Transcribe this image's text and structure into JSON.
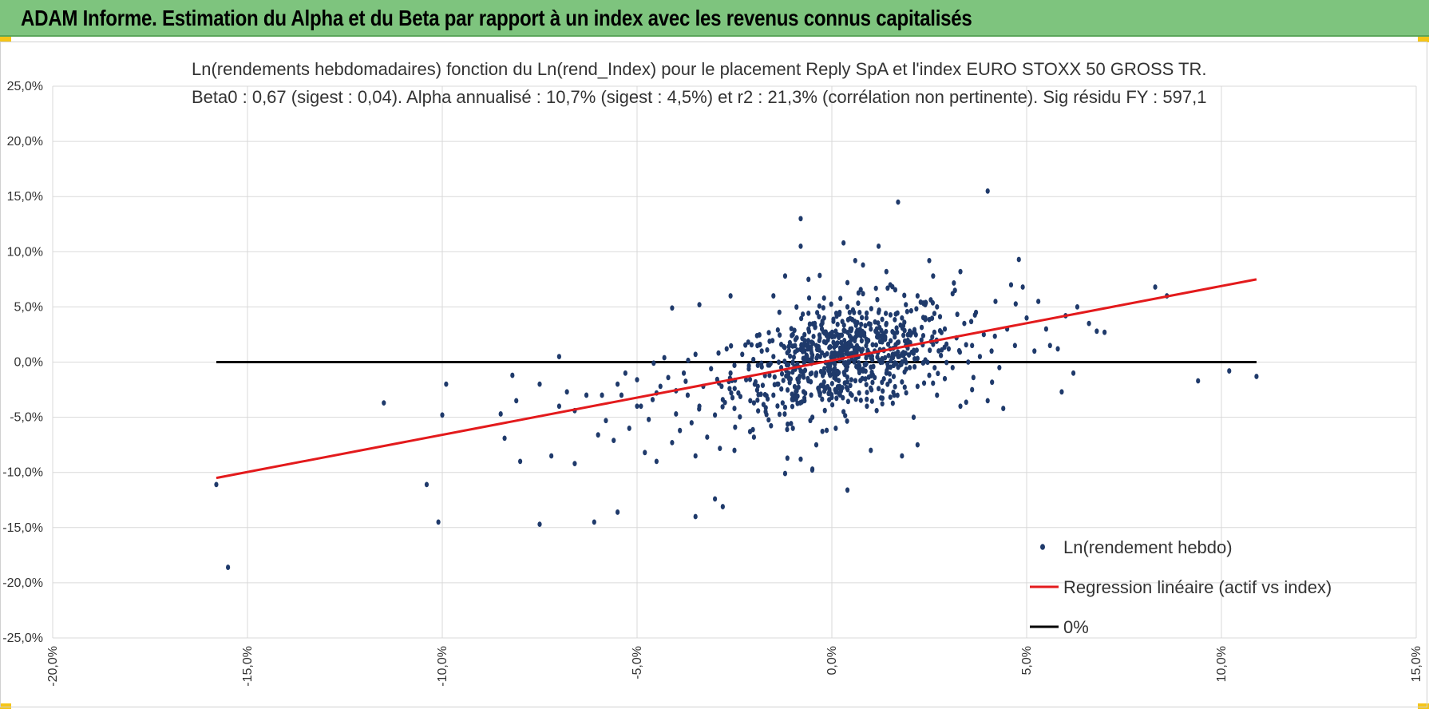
{
  "header": {
    "title": "ADAM Informe. Estimation du Alpha et du Beta par rapport à un index avec les revenus connus capitalisés"
  },
  "colors": {
    "banner": "#7ec47e",
    "points": "#1f3a6b",
    "regression": "#e31a1c",
    "zero_line": "#000000",
    "grid": "#d9d9d9"
  },
  "chart_data": {
    "type": "scatter",
    "title": "Ln(rendements hebdomadaires) fonction du Ln(rend_Index) pour le placement Reply SpA et l'index EURO STOXX 50 GROSS TR.",
    "subtitle": "Beta0 : 0,67 (sigest : 0,04).  Alpha annualisé : 10,7% (sigest : 4,5%) et r2 : 21,3% (corrélation non pertinente). Sig résidu FY : 597,1",
    "xlabel": "",
    "ylabel": "",
    "xlim": [
      -0.2,
      0.15
    ],
    "ylim": [
      -0.25,
      0.25
    ],
    "x_ticks": [
      -0.2,
      -0.15,
      -0.1,
      -0.05,
      0.0,
      0.05,
      0.1,
      0.15
    ],
    "x_tick_labels": [
      "-20,0%",
      "-15,0%",
      "-10,0%",
      "-5,0%",
      "0,0%",
      "5,0%",
      "10,0%",
      "15,0%"
    ],
    "y_ticks": [
      0.25,
      0.2,
      0.15,
      0.1,
      0.05,
      0.0,
      -0.05,
      -0.1,
      -0.15,
      -0.2,
      -0.25
    ],
    "y_tick_labels": [
      "25,0%",
      "20,0%",
      "15,0%",
      "10,0%",
      "5,0%",
      "0,0%",
      "-5,0%",
      "-10,0%",
      "-15,0%",
      "-20,0%",
      "-25,0%"
    ],
    "grid": true,
    "legend_position": "bottom-right",
    "series": [
      {
        "name": "Ln(rendement hebdo)",
        "kind": "scatter",
        "color": "#1f3a6b",
        "points": [
          [
            -0.158,
            -0.111
          ],
          [
            -0.155,
            -0.186
          ],
          [
            -0.115,
            -0.037
          ],
          [
            -0.104,
            -0.111
          ],
          [
            -0.101,
            -0.145
          ],
          [
            -0.1,
            -0.048
          ],
          [
            -0.099,
            -0.02
          ],
          [
            -0.085,
            -0.047
          ],
          [
            -0.084,
            -0.069
          ],
          [
            -0.082,
            -0.012
          ],
          [
            -0.081,
            -0.035
          ],
          [
            -0.08,
            -0.09
          ],
          [
            -0.075,
            -0.147
          ],
          [
            -0.075,
            -0.02
          ],
          [
            -0.072,
            -0.085
          ],
          [
            -0.07,
            0.005
          ],
          [
            -0.07,
            -0.04
          ],
          [
            -0.068,
            -0.027
          ],
          [
            -0.066,
            -0.092
          ],
          [
            -0.066,
            -0.044
          ],
          [
            -0.063,
            -0.03
          ],
          [
            -0.061,
            -0.145
          ],
          [
            -0.06,
            -0.066
          ],
          [
            -0.059,
            -0.03
          ],
          [
            -0.058,
            -0.053
          ],
          [
            -0.056,
            -0.071
          ],
          [
            -0.055,
            -0.136
          ],
          [
            -0.054,
            -0.03
          ],
          [
            -0.053,
            -0.01
          ],
          [
            -0.052,
            -0.06
          ],
          [
            -0.05,
            -0.016
          ],
          [
            -0.049,
            -0.04
          ],
          [
            -0.048,
            -0.082
          ],
          [
            -0.047,
            -0.052
          ],
          [
            -0.046,
            -0.034
          ],
          [
            -0.045,
            -0.09
          ],
          [
            -0.044,
            -0.022
          ],
          [
            -0.043,
            0.004
          ],
          [
            -0.042,
            -0.014
          ],
          [
            -0.041,
            -0.073
          ],
          [
            -0.04,
            -0.047
          ],
          [
            -0.04,
            -0.026
          ],
          [
            -0.039,
            -0.062
          ],
          [
            -0.038,
            -0.01
          ],
          [
            -0.037,
            -0.03
          ],
          [
            -0.036,
            -0.055
          ],
          [
            -0.035,
            0.007
          ],
          [
            -0.034,
            -0.04
          ],
          [
            -0.033,
            -0.022
          ],
          [
            -0.032,
            -0.068
          ],
          [
            -0.031,
            -0.006
          ],
          [
            -0.03,
            -0.048
          ],
          [
            -0.03,
            -0.124
          ],
          [
            -0.029,
            -0.019
          ],
          [
            -0.028,
            -0.034
          ],
          [
            -0.027,
            0.012
          ],
          [
            -0.026,
            -0.01
          ],
          [
            -0.025,
            -0.042
          ],
          [
            -0.025,
            -0.003
          ],
          [
            -0.024,
            -0.028
          ],
          [
            -0.023,
            0.007
          ],
          [
            -0.022,
            -0.016
          ],
          [
            -0.021,
            -0.063
          ],
          [
            -0.02,
            -0.037
          ],
          [
            -0.019,
            -0.003
          ],
          [
            -0.019,
            -0.022
          ],
          [
            -0.018,
            0.01
          ],
          [
            -0.017,
            -0.045
          ],
          [
            -0.016,
            -0.012
          ],
          [
            -0.015,
            0.005
          ],
          [
            -0.015,
            -0.03
          ],
          [
            -0.014,
            -0.02
          ],
          [
            -0.013,
            0.016
          ],
          [
            -0.013,
            -0.005
          ],
          [
            -0.012,
            -0.041
          ],
          [
            -0.011,
            -0.015
          ],
          [
            -0.01,
            0.0
          ],
          [
            -0.01,
            -0.06
          ],
          [
            -0.009,
            0.022
          ],
          [
            -0.009,
            -0.026
          ],
          [
            -0.008,
            -0.008
          ],
          [
            -0.007,
            0.01
          ],
          [
            -0.007,
            -0.035
          ],
          [
            -0.006,
            -0.017
          ],
          [
            -0.006,
            0.03
          ],
          [
            -0.005,
            0.0
          ],
          [
            -0.005,
            -0.05
          ],
          [
            -0.004,
            -0.01
          ],
          [
            -0.004,
            0.015
          ],
          [
            -0.003,
            -0.028
          ],
          [
            -0.003,
            0.005
          ],
          [
            -0.002,
            -0.018
          ],
          [
            -0.002,
            0.04
          ],
          [
            -0.001,
            -0.004
          ],
          [
            -0.001,
            0.02
          ],
          [
            0.0,
            -0.032
          ],
          [
            0.0,
            0.008
          ],
          [
            0.001,
            -0.012
          ],
          [
            0.001,
            0.028
          ],
          [
            0.002,
            0.002
          ],
          [
            0.002,
            -0.022
          ],
          [
            0.003,
            0.014
          ],
          [
            0.003,
            -0.045
          ],
          [
            0.004,
            0.05
          ],
          [
            0.004,
            -0.004
          ],
          [
            0.005,
            0.022
          ],
          [
            0.005,
            -0.016
          ],
          [
            0.006,
            0.006
          ],
          [
            0.006,
            0.036
          ],
          [
            0.007,
            -0.028
          ],
          [
            0.007,
            0.012
          ],
          [
            0.008,
            -0.008
          ],
          [
            0.008,
            0.062
          ],
          [
            0.009,
            0.018
          ],
          [
            0.009,
            -0.04
          ],
          [
            0.01,
            0.004
          ],
          [
            0.01,
            0.03
          ],
          [
            0.011,
            -0.014
          ],
          [
            0.011,
            0.01
          ],
          [
            0.012,
            0.045
          ],
          [
            0.012,
            -0.024
          ],
          [
            0.013,
            0.02
          ],
          [
            0.013,
            0.0
          ],
          [
            0.014,
            0.035
          ],
          [
            0.014,
            -0.01
          ],
          [
            0.015,
            0.07
          ],
          [
            0.015,
            0.012
          ],
          [
            0.016,
            -0.03
          ],
          [
            0.016,
            0.026
          ],
          [
            0.017,
            0.005
          ],
          [
            0.017,
            0.145
          ],
          [
            0.018,
            0.04
          ],
          [
            0.018,
            -0.018
          ],
          [
            0.019,
            0.015
          ],
          [
            0.019,
            0.052
          ],
          [
            0.02,
            -0.005
          ],
          [
            0.02,
            0.028
          ],
          [
            0.021,
            -0.05
          ],
          [
            0.021,
            0.008
          ],
          [
            0.022,
            0.06
          ],
          [
            0.022,
            -0.022
          ],
          [
            0.023,
            0.02
          ],
          [
            0.024,
            0.002
          ],
          [
            0.024,
            0.04
          ],
          [
            0.025,
            -0.012
          ],
          [
            0.025,
            0.092
          ],
          [
            0.026,
            0.016
          ],
          [
            0.027,
            -0.03
          ],
          [
            0.027,
            0.05
          ],
          [
            0.028,
            0.006
          ],
          [
            0.029,
            0.03
          ],
          [
            0.029,
            -0.015
          ],
          [
            0.03,
            0.012
          ],
          [
            0.031,
            0.062
          ],
          [
            0.031,
            -0.005
          ],
          [
            0.032,
            0.022
          ],
          [
            0.033,
            0.082
          ],
          [
            0.033,
            -0.04
          ],
          [
            0.034,
            0.035
          ],
          [
            0.035,
            0.0
          ],
          [
            0.036,
            0.015
          ],
          [
            0.036,
            -0.025
          ],
          [
            0.037,
            0.045
          ],
          [
            0.038,
            0.005
          ],
          [
            0.039,
            0.025
          ],
          [
            0.04,
            0.155
          ],
          [
            0.04,
            -0.035
          ],
          [
            0.041,
            0.01
          ],
          [
            0.042,
            0.055
          ],
          [
            0.043,
            -0.005
          ],
          [
            0.044,
            -0.042
          ],
          [
            0.045,
            0.03
          ],
          [
            0.046,
            0.07
          ],
          [
            0.047,
            0.015
          ],
          [
            0.048,
            0.093
          ],
          [
            0.049,
            0.068
          ],
          [
            0.05,
            0.04
          ],
          [
            0.052,
            0.01
          ],
          [
            0.053,
            0.055
          ],
          [
            0.055,
            0.03
          ],
          [
            0.056,
            0.015
          ],
          [
            0.058,
            0.012
          ],
          [
            0.059,
            -0.027
          ],
          [
            0.06,
            0.042
          ],
          [
            0.062,
            -0.01
          ],
          [
            0.063,
            0.05
          ],
          [
            0.066,
            0.035
          ],
          [
            0.068,
            0.028
          ],
          [
            0.07,
            0.027
          ],
          [
            0.083,
            0.068
          ],
          [
            0.086,
            0.06
          ],
          [
            0.094,
            -0.017
          ],
          [
            0.102,
            -0.008
          ],
          [
            0.109,
            -0.013
          ],
          [
            -0.012,
            -0.101
          ],
          [
            -0.01,
            0.025
          ],
          [
            -0.008,
            0.105
          ],
          [
            -0.008,
            0.13
          ],
          [
            -0.005,
            -0.097
          ],
          [
            -0.002,
            0.058
          ],
          [
            0.002,
            0.045
          ],
          [
            0.003,
            0.108
          ],
          [
            0.004,
            0.072
          ],
          [
            0.006,
            0.092
          ],
          [
            0.008,
            0.088
          ],
          [
            0.01,
            -0.08
          ],
          [
            0.012,
            0.105
          ],
          [
            0.014,
            0.082
          ],
          [
            0.018,
            -0.085
          ],
          [
            0.022,
            -0.075
          ],
          [
            0.026,
            0.078
          ],
          [
            -0.026,
            0.06
          ],
          [
            -0.034,
            0.052
          ],
          [
            -0.041,
            0.049
          ],
          [
            -0.012,
            0.078
          ],
          [
            -0.015,
            0.06
          ],
          [
            -0.006,
            0.075
          ],
          [
            0.004,
            -0.116
          ],
          [
            0.001,
            -0.06
          ],
          [
            -0.004,
            -0.075
          ],
          [
            -0.008,
            -0.088
          ],
          [
            -0.02,
            -0.068
          ],
          [
            -0.025,
            -0.08
          ],
          [
            -0.035,
            -0.085
          ],
          [
            -0.028,
            -0.131
          ],
          [
            -0.035,
            -0.14
          ],
          [
            -0.045,
            -0.028
          ],
          [
            -0.05,
            -0.04
          ],
          [
            -0.055,
            -0.02
          ]
        ]
      },
      {
        "name": "Regression linéaire (actif vs index)",
        "kind": "line",
        "color": "#e31a1c",
        "points": [
          [
            -0.158,
            -0.105
          ],
          [
            0.109,
            0.075
          ]
        ]
      },
      {
        "name": "0%",
        "kind": "line",
        "color": "#000000",
        "points": [
          [
            -0.158,
            0.0
          ],
          [
            0.109,
            0.0
          ]
        ]
      }
    ]
  }
}
